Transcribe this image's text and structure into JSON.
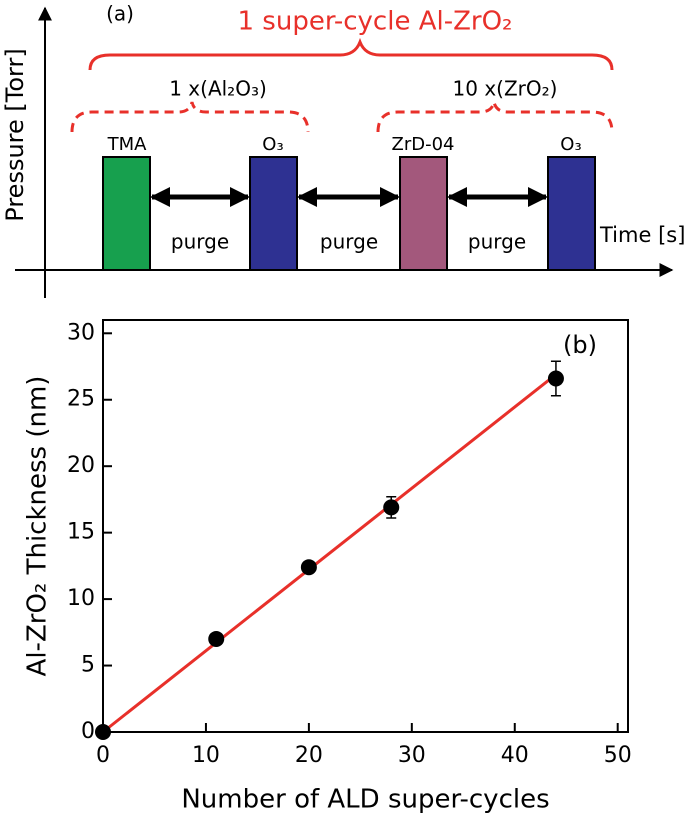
{
  "diagram": {
    "label": "(a)",
    "title": "1 super-cycle Al-ZrO₂",
    "y_axis_label": "Pressure [Torr]",
    "x_axis_label": "Time [s]",
    "groups": [
      "1 x(Al₂O₃)",
      "10 x(ZrO₂)"
    ],
    "pulses": [
      "TMA",
      "O₃",
      "ZrD-04",
      "O₃"
    ],
    "purges": [
      "purge",
      "purge",
      "purge"
    ]
  },
  "chart_data": {
    "type": "scatter",
    "annotation": "(b)",
    "xlabel": "Number of ALD super-cycles",
    "ylabel": "Al-ZrO₂ Thickness (nm)",
    "x": [
      0,
      11,
      20,
      28,
      44
    ],
    "values": [
      0,
      7,
      12.4,
      16.9,
      26.6
    ],
    "errors": [
      0.2,
      0.3,
      0.3,
      0.8,
      1.3
    ],
    "color": "#000000",
    "fit": {
      "x": [
        0,
        44
      ],
      "y": [
        0,
        26.9
      ],
      "color": "#e8302a"
    },
    "xlim": [
      0,
      51
    ],
    "xticks": [
      0,
      10,
      20,
      30,
      40,
      50
    ],
    "ylim": [
      0,
      31
    ],
    "yticks": [
      0,
      5,
      10,
      15,
      20,
      25,
      30
    ]
  }
}
